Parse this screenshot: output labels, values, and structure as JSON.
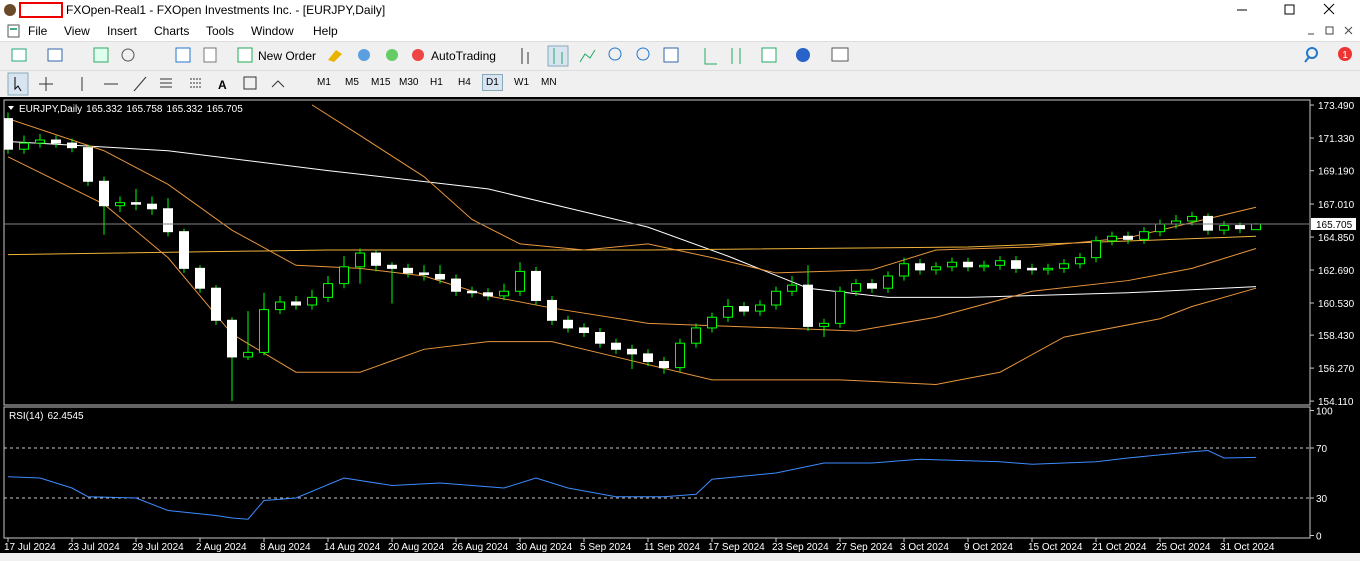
{
  "window": {
    "title": "FXOpen-Real1 - FXOpen Investments Inc. - [EURJPY,Daily]",
    "notifications": 1
  },
  "menu": [
    "File",
    "View",
    "Insert",
    "Charts",
    "Tools",
    "Window",
    "Help"
  ],
  "toolbar": {
    "new_order": "New Order",
    "autotrading": "AutoTrading",
    "timeframes": [
      "M1",
      "M5",
      "M15",
      "M30",
      "H1",
      "H4",
      "D1",
      "W1",
      "MN"
    ],
    "active_timeframe": "D1"
  },
  "chart_data": [
    {
      "type": "candlestick",
      "title": "EURJPY,Daily",
      "background": "#000000",
      "bull_color": "#00ff00",
      "bear_color": "#ffffff",
      "categories": [
        "17 Jul 2024",
        null,
        null,
        null,
        "23 Jul 2024",
        null,
        null,
        null,
        "29 Jul 2024",
        null,
        null,
        null,
        "2 Aug 2024",
        null,
        null,
        null,
        "8 Aug 2024",
        null,
        null,
        null,
        "14 Aug 2024",
        null,
        null,
        null,
        "20 Aug 2024",
        null,
        null,
        null,
        "26 Aug 2024",
        null,
        null,
        null,
        "30 Aug 2024",
        null,
        null,
        null,
        "5 Sep 2024",
        null,
        null,
        null,
        "11 Sep 2024",
        null,
        null,
        null,
        "17 Sep 2024",
        null,
        null,
        null,
        "23 Sep 2024",
        null,
        null,
        null,
        "27 Sep 2024",
        null,
        null,
        null,
        "3 Oct 2024",
        null,
        null,
        null,
        "9 Oct 2024",
        null,
        null,
        null,
        "15 Oct 2024",
        null,
        null,
        null,
        "21 Oct 2024",
        null,
        null,
        null,
        "25 Oct 2024",
        null,
        null,
        null,
        "31 Oct 2024",
        null,
        null
      ],
      "candles": [
        [
          172.6,
          173.0,
          170.3,
          170.6
        ],
        [
          170.6,
          171.5,
          170.3,
          171.0
        ],
        [
          171.0,
          171.6,
          170.7,
          171.2
        ],
        [
          171.2,
          171.5,
          170.7,
          171.0
        ],
        [
          171.0,
          171.3,
          170.4,
          170.7
        ],
        [
          170.7,
          170.9,
          168.2,
          168.5
        ],
        [
          168.5,
          168.8,
          165.0,
          166.9
        ],
        [
          166.9,
          167.5,
          166.5,
          167.1
        ],
        [
          167.1,
          168.0,
          166.6,
          167.0
        ],
        [
          167.0,
          167.5,
          166.3,
          166.7
        ],
        [
          166.7,
          167.4,
          164.9,
          165.2
        ],
        [
          165.2,
          165.4,
          162.5,
          162.8
        ],
        [
          162.8,
          163.0,
          161.2,
          161.5
        ],
        [
          161.5,
          161.7,
          159.1,
          159.4
        ],
        [
          159.4,
          159.6,
          154.11,
          157.0
        ],
        [
          157.0,
          160.0,
          156.8,
          157.3
        ],
        [
          157.3,
          161.2,
          157.1,
          160.1
        ],
        [
          160.1,
          161.0,
          159.8,
          160.6
        ],
        [
          160.6,
          161.0,
          160.1,
          160.4
        ],
        [
          160.4,
          161.4,
          160.1,
          160.9
        ],
        [
          160.9,
          162.3,
          160.6,
          161.8
        ],
        [
          161.8,
          163.6,
          161.5,
          162.9
        ],
        [
          162.9,
          164.1,
          161.8,
          163.8
        ],
        [
          163.8,
          164.0,
          162.6,
          163.0
        ],
        [
          163.0,
          163.2,
          160.5,
          162.8
        ],
        [
          162.8,
          163.1,
          162.2,
          162.5
        ],
        [
          162.5,
          163.0,
          162.0,
          162.4
        ],
        [
          162.4,
          163.0,
          161.8,
          162.1
        ],
        [
          162.1,
          162.4,
          161.0,
          161.3
        ],
        [
          161.3,
          161.6,
          160.9,
          161.2
        ],
        [
          161.2,
          161.5,
          160.7,
          161.0
        ],
        [
          161.0,
          161.8,
          160.7,
          161.3
        ],
        [
          161.3,
          163.2,
          161.0,
          162.6
        ],
        [
          162.6,
          162.9,
          160.4,
          160.7
        ],
        [
          160.7,
          161.0,
          159.1,
          159.4
        ],
        [
          159.4,
          159.7,
          158.6,
          158.9
        ],
        [
          158.9,
          159.2,
          158.3,
          158.6
        ],
        [
          158.6,
          158.9,
          157.6,
          157.9
        ],
        [
          157.9,
          158.2,
          157.2,
          157.5
        ],
        [
          157.5,
          157.8,
          156.2,
          157.2
        ],
        [
          157.2,
          157.5,
          156.4,
          156.7
        ],
        [
          156.7,
          157.0,
          155.9,
          156.3
        ],
        [
          156.3,
          158.2,
          156.0,
          157.9
        ],
        [
          157.9,
          159.2,
          157.6,
          158.9
        ],
        [
          158.9,
          159.9,
          158.6,
          159.6
        ],
        [
          159.6,
          160.8,
          159.3,
          160.3
        ],
        [
          160.3,
          160.6,
          159.7,
          160.0
        ],
        [
          160.0,
          160.7,
          159.7,
          160.4
        ],
        [
          160.4,
          161.6,
          160.1,
          161.3
        ],
        [
          161.3,
          162.3,
          161.0,
          161.7
        ],
        [
          161.7,
          163.0,
          158.7,
          159.0
        ],
        [
          159.0,
          159.5,
          158.3,
          159.2
        ],
        [
          159.2,
          161.6,
          158.9,
          161.3
        ],
        [
          161.3,
          162.1,
          161.0,
          161.8
        ],
        [
          161.8,
          162.1,
          161.2,
          161.5
        ],
        [
          161.5,
          162.6,
          161.2,
          162.3
        ],
        [
          162.3,
          163.5,
          162.0,
          163.1
        ],
        [
          163.1,
          163.4,
          162.4,
          162.7
        ],
        [
          162.7,
          163.2,
          162.4,
          162.9
        ],
        [
          162.9,
          163.5,
          162.6,
          163.2
        ],
        [
          163.2,
          163.5,
          162.6,
          162.9
        ],
        [
          162.9,
          163.3,
          162.6,
          163.0
        ],
        [
          163.0,
          163.6,
          162.7,
          163.3
        ],
        [
          163.3,
          163.6,
          162.5,
          162.8
        ],
        [
          162.8,
          163.1,
          162.4,
          162.7
        ],
        [
          162.7,
          163.1,
          162.4,
          162.8
        ],
        [
          162.8,
          163.4,
          162.5,
          163.1
        ],
        [
          163.1,
          163.8,
          162.8,
          163.5
        ],
        [
          163.5,
          164.9,
          163.2,
          164.6
        ],
        [
          164.6,
          165.2,
          164.3,
          164.9
        ],
        [
          164.9,
          165.2,
          164.4,
          164.7
        ],
        [
          164.7,
          165.5,
          164.4,
          165.2
        ],
        [
          165.2,
          166.0,
          164.9,
          165.7
        ],
        [
          165.7,
          166.3,
          165.4,
          165.9
        ],
        [
          165.9,
          166.5,
          165.6,
          166.2
        ],
        [
          166.2,
          166.4,
          165.0,
          165.3
        ],
        [
          165.3,
          165.9,
          165.0,
          165.6
        ],
        [
          165.6,
          165.8,
          165.1,
          165.4
        ],
        [
          165.332,
          165.758,
          165.332,
          165.705
        ]
      ],
      "series": [
        {
          "color": "#ffffff",
          "x": [
            0,
            10,
            20,
            30,
            40,
            45,
            50,
            55,
            60,
            70,
            78
          ],
          "values": [
            171.1,
            170.5,
            169.2,
            168.0,
            165.5,
            163.6,
            161.5,
            160.9,
            160.9,
            161.2,
            161.6
          ]
        },
        {
          "color": "#f0b43c",
          "x": [
            0,
            20,
            40,
            60,
            78
          ],
          "values": [
            163.7,
            164.0,
            164.0,
            164.2,
            164.9
          ]
        },
        {
          "color": "#e8963c",
          "x": [
            19,
            22,
            26,
            29,
            32,
            36,
            40,
            44,
            48,
            54,
            58,
            64,
            70,
            76,
            78
          ],
          "values": [
            173.5,
            171.5,
            168.8,
            166.0,
            164.4,
            164.0,
            164.4,
            163.5,
            162.5,
            162.7,
            164.0,
            164.2,
            164.8,
            166.3,
            166.8
          ]
        },
        {
          "color": "#e8963c",
          "x": [
            0,
            6,
            10,
            14,
            18,
            22,
            26,
            30,
            34,
            40,
            48,
            53,
            58,
            64,
            70,
            74,
            78
          ],
          "values": [
            172.6,
            170.5,
            168.3,
            165.3,
            163.0,
            162.8,
            162.3,
            161.0,
            160.2,
            159.2,
            158.9,
            158.7,
            159.6,
            161.3,
            162.0,
            162.8,
            164.1
          ]
        },
        {
          "color": "#e8963c",
          "x": [
            0,
            6,
            10,
            14,
            18,
            22,
            26,
            30,
            34,
            38,
            44,
            52,
            58,
            62,
            66,
            72,
            74,
            78
          ],
          "values": [
            170.1,
            167.0,
            163.5,
            158.5,
            156.0,
            156.0,
            157.5,
            158.0,
            158.0,
            157.0,
            155.5,
            155.5,
            155.2,
            156.0,
            158.3,
            159.5,
            160.3,
            161.5
          ]
        }
      ],
      "ylim": [
        153.92,
        173.82
      ],
      "yticks": [
        {
          "value": 173.49,
          "label": "173.490"
        },
        {
          "value": 171.33,
          "label": "171.330"
        },
        {
          "value": 169.19,
          "label": "169.190"
        },
        {
          "value": 167.01,
          "label": "167.010"
        },
        {
          "value": 164.85,
          "label": "164.850"
        },
        {
          "value": 162.69,
          "label": "162.690"
        },
        {
          "value": 160.53,
          "label": "160.530"
        },
        {
          "value": 158.43,
          "label": "158.430"
        },
        {
          "value": 156.27,
          "label": "156.270"
        },
        {
          "value": 154.11,
          "label": "154.110"
        }
      ]
    },
    {
      "type": "line",
      "title": "RSI(14)",
      "color": "#3c8cff",
      "x": [
        0,
        2,
        4,
        5,
        8,
        10,
        13,
        14,
        15,
        16,
        18,
        21,
        24,
        27,
        31,
        33,
        35,
        38,
        41,
        43,
        44,
        48,
        51,
        54,
        57,
        62,
        64,
        68,
        70,
        74,
        75,
        76,
        78
      ],
      "values": [
        47,
        46,
        38,
        31,
        30,
        20,
        16,
        14,
        13,
        28,
        30,
        46,
        40,
        42,
        38,
        46,
        38,
        31,
        31,
        33,
        45,
        50,
        58,
        58,
        61,
        59,
        57,
        59,
        62,
        67,
        68,
        62,
        62.4545
      ],
      "ylim": [
        0,
        100
      ],
      "yticks": [
        100,
        70,
        30,
        0
      ],
      "levels": [
        30,
        70
      ]
    }
  ]
}
